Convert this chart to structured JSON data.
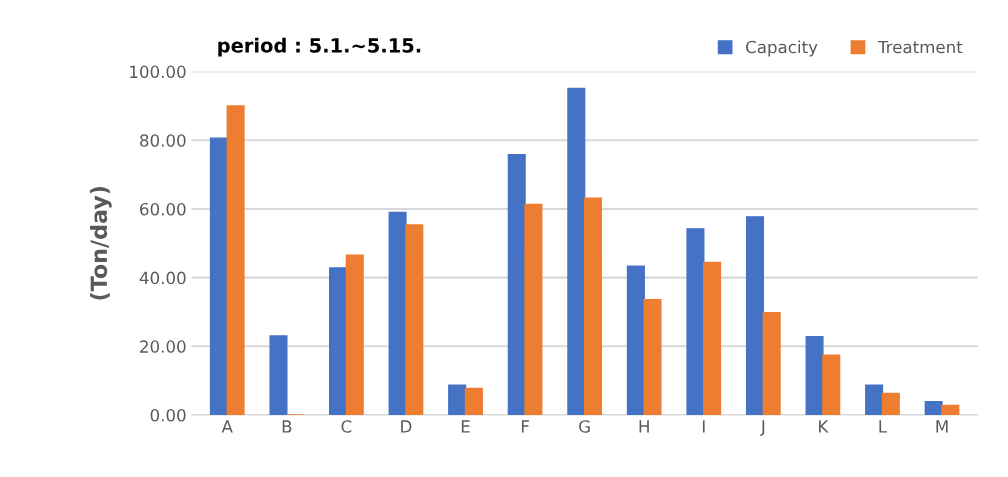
{
  "chart_data": {
    "type": "bar",
    "title": "period : 5.1.~5.15.",
    "ylabel": "(Ton/day)",
    "categories": [
      "A",
      "B",
      "C",
      "D",
      "E",
      "F",
      "G",
      "H",
      "I",
      "J",
      "K",
      "L",
      "M"
    ],
    "series": [
      {
        "name": "Capacity",
        "color": "#4472c4",
        "values": [
          80.6,
          23.0,
          42.8,
          59.0,
          8.7,
          75.8,
          95.1,
          43.3,
          54.2,
          57.7,
          22.8,
          8.7,
          3.9
        ]
      },
      {
        "name": "Treatment",
        "color": "#ed7d31",
        "values": [
          90.0,
          0,
          46.5,
          55.3,
          7.7,
          61.3,
          63.1,
          33.6,
          44.4,
          29.8,
          17.4,
          6.3,
          2.8
        ]
      }
    ],
    "ylim": [
      0,
      100
    ],
    "yticks": [
      {
        "value": 0,
        "label": "0.00"
      },
      {
        "value": 20,
        "label": "20.00"
      },
      {
        "value": 40,
        "label": "40.00"
      },
      {
        "value": 60,
        "label": "60.00"
      },
      {
        "value": 80,
        "label": "80.00"
      },
      {
        "value": 100,
        "label": "100.00"
      }
    ],
    "grid": "y",
    "legend": "top right"
  }
}
